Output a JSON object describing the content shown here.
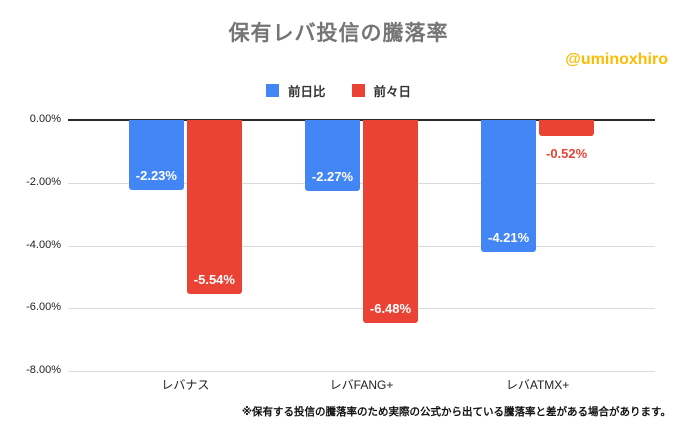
{
  "title": "保有レバ投信の騰落率",
  "watermark": "@uminoxhiro",
  "footnote": "※保有する投信の騰落率のため実際の公式から出ている騰落率と差がある場合があります。",
  "colors": {
    "series1_blue": "#4285F4",
    "series2_red": "#EA4335",
    "title": "#757575",
    "watermark": "#FBBC04",
    "gridline": "#DADADA",
    "zeroline": "#2B2B2B"
  },
  "chart_data": {
    "type": "bar",
    "orientation": "vertical",
    "title": "保有レバ投信の騰落率",
    "xlabel": "",
    "ylabel": "",
    "categories": [
      "レバナス",
      "レバFANG+",
      "レバATMX+"
    ],
    "series": [
      {
        "name": "前日比",
        "color": "#4285F4",
        "values": [
          -2.23,
          -2.27,
          -4.21
        ]
      },
      {
        "name": "前々日",
        "color": "#EA4335",
        "values": [
          -5.54,
          -6.48,
          -0.52
        ]
      }
    ],
    "value_labels": [
      [
        "-2.23%",
        "-2.27%",
        "-4.21%"
      ],
      [
        "-5.54%",
        "-6.48%",
        "-0.52%"
      ]
    ],
    "ylim": [
      -8,
      0
    ],
    "ytick_step": 2,
    "ytick_labels": [
      "0.00%",
      "-2.00%",
      "-4.00%",
      "-6.00%",
      "-8.00%"
    ],
    "grid": true,
    "legend_position": "top"
  }
}
